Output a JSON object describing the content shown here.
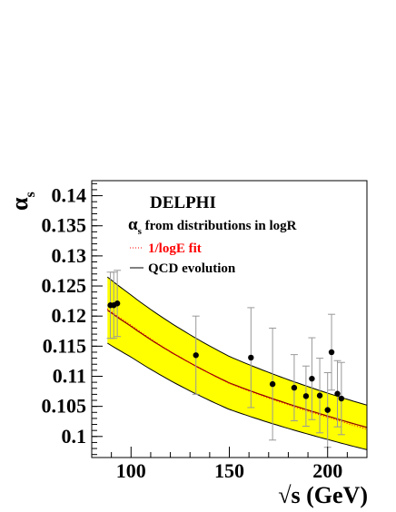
{
  "chart_data": {
    "type": "scatter",
    "title": "DELPHI",
    "subtitle_main": "α",
    "subtitle_sub": "s",
    "subtitle_rest": " from distributions in logR",
    "xlabel": "√s (GeV)",
    "ylabel_main": "α",
    "ylabel_sub": "s",
    "xlim": [
      80,
      220
    ],
    "ylim": [
      0.0965,
      0.1425
    ],
    "x_ticks": [
      100,
      150,
      200
    ],
    "x_tick_labels": [
      "100",
      "150",
      "200"
    ],
    "y_ticks": [
      0.1,
      0.105,
      0.11,
      0.115,
      0.12,
      0.125,
      0.13,
      0.135,
      0.14
    ],
    "y_tick_labels": [
      "0.1",
      "0.105",
      "0.11",
      "0.115",
      "0.12",
      "0.125",
      "0.13",
      "0.135",
      "0.14"
    ],
    "grid": false,
    "legend": [
      {
        "label": "1/logE fit",
        "color": "#ff0000",
        "style": "dotted"
      },
      {
        "label": "QCD evolution",
        "color": "#000000",
        "style": "solid"
      }
    ],
    "points": [
      {
        "x": 89.5,
        "y": 0.1218,
        "yerr": 0.0055
      },
      {
        "x": 91.2,
        "y": 0.1218,
        "yerr": 0.0055
      },
      {
        "x": 93.0,
        "y": 0.1221,
        "yerr": 0.0055
      },
      {
        "x": 133.0,
        "y": 0.1135,
        "yerr": 0.0065
      },
      {
        "x": 161.0,
        "y": 0.1131,
        "yerr": 0.0083
      },
      {
        "x": 172.0,
        "y": 0.1087,
        "yerr": 0.0093
      },
      {
        "x": 183.0,
        "y": 0.1081,
        "yerr": 0.0055
      },
      {
        "x": 189.0,
        "y": 0.1067,
        "yerr": 0.005
      },
      {
        "x": 192.0,
        "y": 0.1096,
        "yerr": 0.0068
      },
      {
        "x": 196.0,
        "y": 0.1068,
        "yerr": 0.0062
      },
      {
        "x": 200.0,
        "y": 0.1044,
        "yerr": 0.0062
      },
      {
        "x": 202.0,
        "y": 0.114,
        "yerr": 0.0063
      },
      {
        "x": 205.0,
        "y": 0.1071,
        "yerr": 0.0055
      },
      {
        "x": 207.0,
        "y": 0.1063,
        "yerr": 0.006
      }
    ],
    "band_upper": [
      [
        88,
        0.1265
      ],
      [
        100,
        0.1235
      ],
      [
        150,
        0.1133
      ],
      [
        200,
        0.1072
      ],
      [
        220,
        0.1052
      ]
    ],
    "band_lower": [
      [
        88,
        0.1155
      ],
      [
        100,
        0.1132
      ],
      [
        150,
        0.1045
      ],
      [
        200,
        0.0995
      ],
      [
        220,
        0.0978
      ]
    ],
    "qcd_curve": [
      [
        88,
        0.121
      ],
      [
        100,
        0.1183
      ],
      [
        150,
        0.1089
      ],
      [
        200,
        0.1034
      ],
      [
        220,
        0.1015
      ]
    ],
    "fit_curve": [
      [
        88,
        0.1212
      ],
      [
        100,
        0.1185
      ],
      [
        150,
        0.1088
      ],
      [
        200,
        0.1032
      ],
      [
        220,
        0.1012
      ]
    ],
    "colors": {
      "band": "#ffff00",
      "band_edge": "#000000",
      "fit": "#ff0000",
      "qcd": "#8b0000",
      "point": "#000000",
      "error_bar": "#999999"
    }
  }
}
